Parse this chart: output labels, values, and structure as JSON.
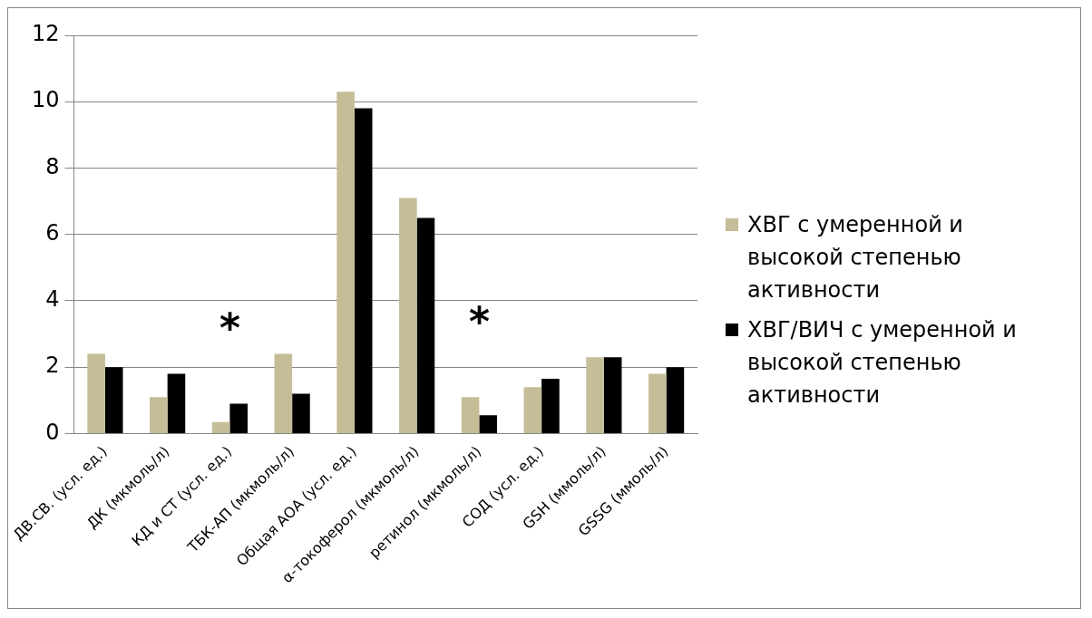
{
  "chart_data": {
    "type": "bar",
    "categories": [
      "ДВ.СВ. (усл. ед.)",
      "ДК (мкмоль/л)",
      "КД и СТ (усл. ед.)",
      "ТБК-АП (мкмоль/л)",
      "Общая АОА (усл. ед.)",
      "α-токоферол (мкмоль/л)",
      "ретинол (мкмоль/л)",
      "СОД (усл. ед.)",
      "GSH (ммоль/л)",
      "GSSG (ммоль/л)"
    ],
    "series": [
      {
        "name": "ХВГ с умеренной и высокой степенью активности",
        "color": "#c4bd97",
        "values": [
          2.4,
          1.1,
          0.35,
          2.4,
          10.3,
          7.1,
          1.1,
          1.4,
          2.3,
          1.8
        ]
      },
      {
        "name": "ХВГ/ВИЧ с умеренной и высокой степенью активности",
        "color": "#000000",
        "values": [
          2.0,
          1.8,
          0.9,
          1.2,
          9.8,
          6.5,
          0.55,
          1.65,
          2.3,
          2.0
        ]
      }
    ],
    "ylim": [
      0,
      12
    ],
    "yticks": [
      0,
      2,
      4,
      6,
      8,
      10,
      12
    ],
    "grid": "y",
    "legend": "right",
    "annotations": [
      {
        "text": "*",
        "x": "КД и СТ (усл. ед.)",
        "y": 0.9
      },
      {
        "text": "*",
        "x": "ретинол (мкмоль/л)",
        "y": 1.1
      }
    ]
  }
}
